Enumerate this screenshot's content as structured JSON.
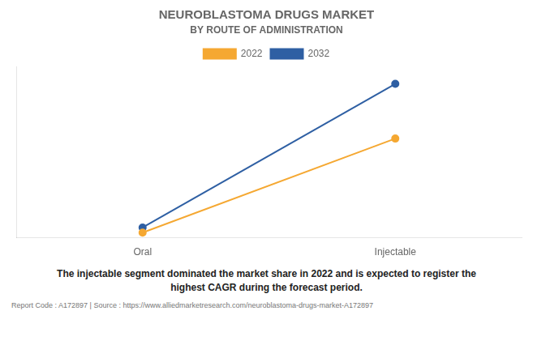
{
  "chart_data": {
    "type": "line",
    "title": "NEUROBLASTOMA DRUGS MARKET",
    "subtitle": "BY ROUTE OF ADMINISTRATION",
    "categories": [
      "Oral",
      "Injectable"
    ],
    "series": [
      {
        "name": "2022",
        "color": "#F5A832",
        "values": [
          0.03,
          0.58
        ]
      },
      {
        "name": "2032",
        "color": "#2E5FA3",
        "values": [
          0.06,
          0.9
        ]
      }
    ],
    "ylim": [
      0,
      1.0
    ],
    "yticks": [],
    "grid": false,
    "tick_labels": "x",
    "legend": "top",
    "marker": "circle",
    "annotations": [
      "The injectable segment dominated the market share in 2022 and is expected to register the\nhighest CAGR during the forecast period.",
      "Report Code : A172897  |  Source : https://www.alliedmarketresearch.com/neuroblastoma-drugs-market-A172897"
    ]
  }
}
